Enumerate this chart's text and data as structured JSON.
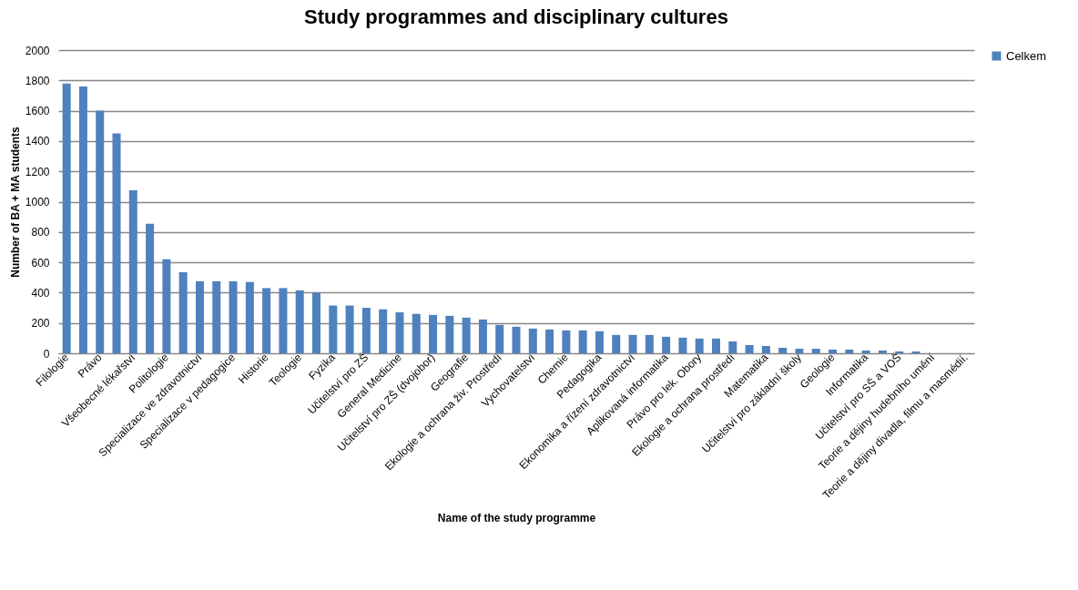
{
  "chart_data": {
    "type": "bar",
    "title": "Study programmes and disciplinary cultures",
    "xlabel": "Name of the study programme",
    "ylabel": "Number of BA + MA students",
    "categories": [
      "Filologie",
      null,
      "Právo",
      null,
      "Všeobecné lékařství",
      null,
      "Politologie",
      null,
      "Specializace ve zdravotnictví",
      null,
      "Specializace v pedagogice",
      null,
      "Historie",
      null,
      "Teologie",
      null,
      "Fyzika",
      null,
      "Učitelství pro ZŠ",
      null,
      "General Medicine",
      null,
      "Učitelství pro ZŠ (dvojobor)",
      null,
      "Geografie",
      null,
      "Ekologie a ochrana živ. Prostředí",
      null,
      "Vychovatelství",
      null,
      "Chemie",
      null,
      "Pedagogika",
      null,
      "Ekonomika a řízení zdravotnictví",
      null,
      "Aplikovaná informatika",
      null,
      "Právo pro lek. Obory",
      null,
      "Ekologie a ochrana prostředí",
      null,
      "Matematika",
      null,
      "Učitelství pro základní školy",
      null,
      "Geologie",
      null,
      "Informatika",
      null,
      "Učitelství pro SŠ a VOŠ",
      null,
      "Teorie a dějiny hudebního umění",
      null,
      "Teorie a dějiny divadla, filmu a masmédií."
    ],
    "series": [
      {
        "name": "Celkem",
        "color": "#4f81bd",
        "values": [
          1780,
          1760,
          1600,
          1450,
          1075,
          855,
          620,
          535,
          475,
          475,
          475,
          470,
          430,
          430,
          415,
          400,
          315,
          315,
          300,
          290,
          270,
          260,
          253,
          247,
          235,
          223,
          187,
          175,
          163,
          157,
          151,
          151,
          145,
          121,
          121,
          121,
          109,
          103,
          97,
          97,
          78,
          54,
          48,
          36,
          30,
          30,
          24,
          24,
          18,
          18,
          12,
          12,
          0,
          0,
          0
        ]
      }
    ],
    "ylim": [
      0,
      2000
    ],
    "yticks": [
      0,
      200,
      400,
      600,
      800,
      1000,
      1200,
      1400,
      1600,
      1800,
      2000
    ],
    "grid": "y",
    "legend": "right"
  }
}
